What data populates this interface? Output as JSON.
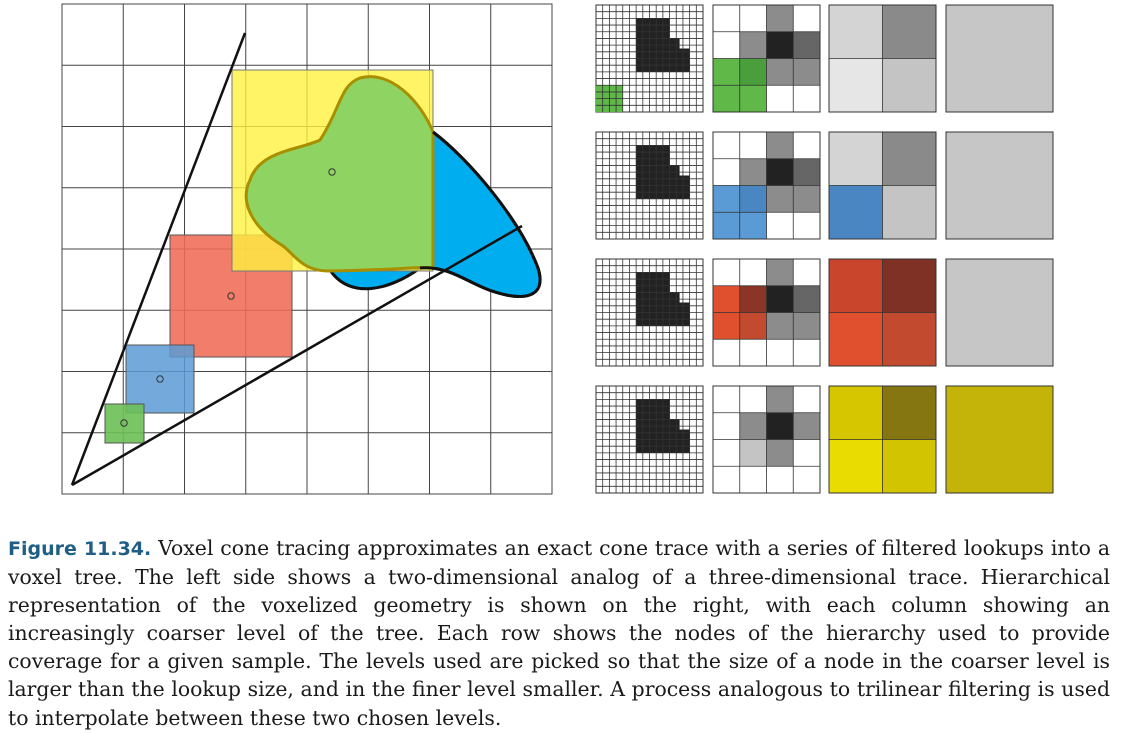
{
  "caption": {
    "label": "Figure 11.34.",
    "text": "Voxel cone tracing approximates an exact cone trace with a series of filtered lookups into a voxel tree. The left side shows a two-dimensional analog of a three-dimensional trace. Hierarchical representation of the voxelized geometry is shown on the right, with each column showing an increasingly coarser level of the tree. Each row shows the nodes of the hierarchy used to provide coverage for a given sample. The levels used are picked so that the size of a node in the coarser level is larger than the lookup size, and in the finer level smaller. A process analogous to trilinear filtering is used to interpolate between these two chosen levels."
  },
  "colors": {
    "green": "#5cb85c",
    "blue": "#5b9bd5",
    "red": "#ef6b55",
    "yellow": "#fff040",
    "shape_green": "#8fd462",
    "shape_blue": "#00aeef",
    "outline_gold": "#a78f00",
    "voxel_black": "#222222"
  },
  "left_panel": {
    "samples": [
      {
        "name": "green-sample",
        "color": "#6cbf55"
      },
      {
        "name": "blue-sample",
        "color": "#5b9bd5"
      },
      {
        "name": "red-sample",
        "color": "#ef6b55"
      },
      {
        "name": "yellow-sample",
        "color": "#fff040"
      }
    ]
  },
  "hierarchy": {
    "rows": [
      {
        "name": "green",
        "level1": {
          "tl": "#ffffff",
          "tr": "#8c8c8c",
          "bl": "#5fb847",
          "br": "#ffffff",
          "tl2": "#8c8c8c",
          "tr2": "#222222",
          "trr": "#666666",
          "bl2": "#4a9e3c",
          "m": "#8c8c8c",
          "mr": "#8c8c8c"
        },
        "level2": [
          "#d4d4d4",
          "#8a8a8a",
          "#e6e6e6",
          "#c4c4c4"
        ],
        "level3": "#c6c6c6"
      },
      {
        "name": "blue",
        "level2": [
          "#d4d4d4",
          "#8a8a8a",
          "#4a86c2",
          "#c4c4c4"
        ],
        "level3": "#c6c6c6"
      },
      {
        "name": "red",
        "level2": [
          "#c9462c",
          "#7f3126",
          "#e0502f",
          "#c24a2e"
        ],
        "level3": "#c6c6c6"
      },
      {
        "name": "yellow",
        "level2": [
          "#d6c600",
          "#857612",
          "#e8dc00",
          "#d2c400"
        ],
        "level3": "#c4b40a"
      }
    ]
  }
}
